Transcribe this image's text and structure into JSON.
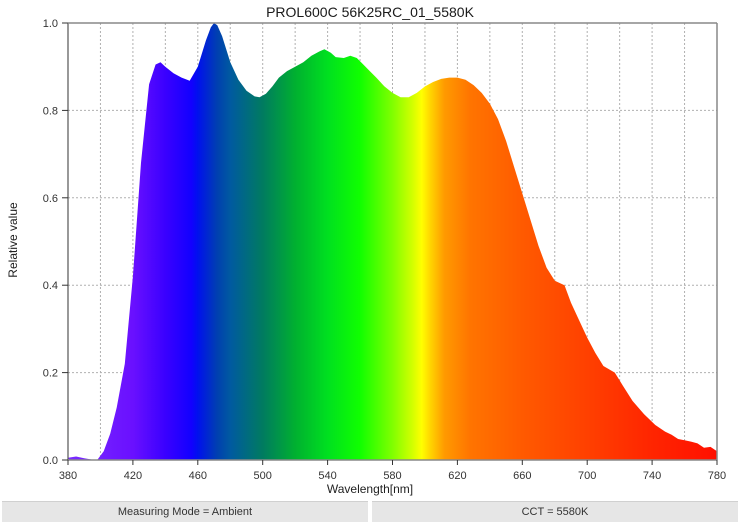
{
  "title": "PROL600C 56K25RC_01_5580K",
  "footer": {
    "measuring_mode": "Measuring Mode = Ambient",
    "cct": "CCT = 5580K"
  },
  "chart_data": {
    "type": "area",
    "title": "PROL600C 56K25RC_01_5580K",
    "xlabel": "Wavelength[nm]",
    "ylabel": "Relative value",
    "xlim": [
      380,
      780
    ],
    "ylim": [
      0.0,
      1.0
    ],
    "x_ticks": [
      380,
      420,
      460,
      500,
      540,
      580,
      620,
      660,
      700,
      740,
      780
    ],
    "y_ticks": [
      0.0,
      0.2,
      0.4,
      0.6,
      0.8,
      1.0
    ],
    "y_tick_labels": [
      "0.0",
      "0.2",
      "0.4",
      "0.6",
      "0.8",
      "1.0"
    ],
    "grid": true,
    "grid_x_step": 20,
    "fill": "visible-spectrum gradient",
    "x": [
      380,
      385,
      390,
      395,
      398,
      402,
      406,
      410,
      415,
      420,
      425,
      430,
      434,
      437,
      440,
      445,
      450,
      455,
      460,
      465,
      468,
      470,
      472,
      475,
      480,
      485,
      490,
      495,
      498,
      502,
      506,
      510,
      515,
      520,
      525,
      530,
      535,
      538,
      542,
      545,
      550,
      554,
      558,
      562,
      566,
      570,
      575,
      580,
      585,
      590,
      595,
      600,
      605,
      610,
      615,
      620,
      625,
      630,
      635,
      640,
      645,
      650,
      655,
      660,
      665,
      670,
      675,
      680,
      686,
      690,
      695,
      700,
      705,
      710,
      717,
      722,
      728,
      735,
      742,
      748,
      752,
      756,
      760,
      764,
      768,
      772,
      776,
      780
    ],
    "values": [
      0.005,
      0.008,
      0.004,
      0.001,
      0.0,
      0.02,
      0.06,
      0.12,
      0.22,
      0.42,
      0.68,
      0.86,
      0.905,
      0.91,
      0.9,
      0.885,
      0.875,
      0.868,
      0.9,
      0.96,
      0.99,
      1.0,
      0.995,
      0.97,
      0.91,
      0.87,
      0.845,
      0.832,
      0.83,
      0.838,
      0.855,
      0.875,
      0.89,
      0.9,
      0.91,
      0.925,
      0.935,
      0.94,
      0.932,
      0.922,
      0.92,
      0.925,
      0.92,
      0.905,
      0.89,
      0.875,
      0.855,
      0.84,
      0.83,
      0.83,
      0.84,
      0.855,
      0.865,
      0.872,
      0.875,
      0.875,
      0.87,
      0.858,
      0.84,
      0.815,
      0.78,
      0.73,
      0.67,
      0.61,
      0.55,
      0.49,
      0.44,
      0.41,
      0.4,
      0.36,
      0.32,
      0.28,
      0.245,
      0.215,
      0.2,
      0.17,
      0.135,
      0.105,
      0.08,
      0.065,
      0.058,
      0.048,
      0.045,
      0.042,
      0.038,
      0.028,
      0.03,
      0.02
    ]
  }
}
